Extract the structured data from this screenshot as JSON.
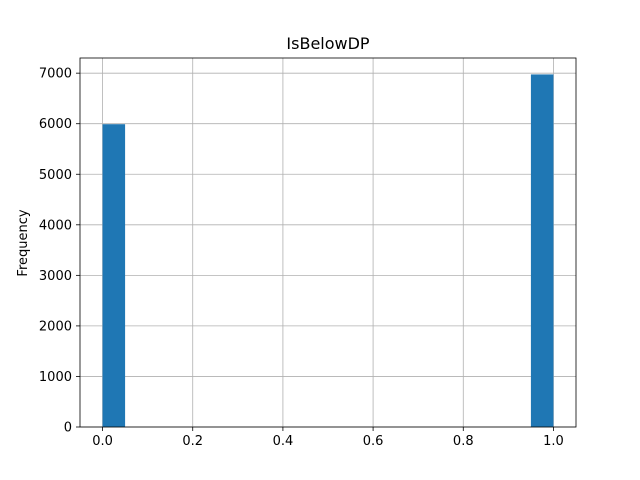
{
  "chart_data": {
    "type": "bar",
    "title": "IsBelowDP",
    "xlabel": "",
    "ylabel": "Frequency",
    "xlim": [
      -0.05,
      1.05
    ],
    "ylim": [
      0,
      7300
    ],
    "x_ticks": [
      "0.0",
      "0.2",
      "0.4",
      "0.6",
      "0.8",
      "1.0"
    ],
    "y_ticks": [
      "0",
      "1000",
      "2000",
      "3000",
      "4000",
      "5000",
      "6000",
      "7000"
    ],
    "bins": [
      {
        "start": 0.0,
        "end": 0.05,
        "count": 5990
      },
      {
        "start": 0.95,
        "end": 1.0,
        "count": 6975
      }
    ],
    "grid": true,
    "colors": {
      "bar": "#1f77b4",
      "grid": "#b0b0b0",
      "axis": "#000000"
    }
  }
}
